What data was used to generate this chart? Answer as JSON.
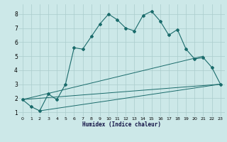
{
  "xlabel": "Humidex (Indice chaleur)",
  "background_color": "#cce8e8",
  "grid_color": "#aacccc",
  "line_color": "#1a6b6b",
  "xlim": [
    -0.5,
    23.5
  ],
  "ylim": [
    0.7,
    8.7
  ],
  "yticks": [
    1,
    2,
    3,
    4,
    5,
    6,
    7,
    8
  ],
  "xticks": [
    0,
    1,
    2,
    3,
    4,
    5,
    6,
    7,
    8,
    9,
    10,
    11,
    12,
    13,
    14,
    15,
    16,
    17,
    18,
    19,
    20,
    21,
    22,
    23
  ],
  "series1_x": [
    0,
    1,
    2,
    3,
    4,
    5,
    6,
    7,
    8,
    9,
    10,
    11,
    12,
    13,
    14,
    15,
    16,
    17,
    18,
    19,
    20,
    21,
    22,
    23
  ],
  "series1_y": [
    1.9,
    1.4,
    1.1,
    2.3,
    1.9,
    3.0,
    5.6,
    5.5,
    6.4,
    7.3,
    8.0,
    7.6,
    7.0,
    6.8,
    7.9,
    8.2,
    7.5,
    6.5,
    6.9,
    5.5,
    4.8,
    4.9,
    4.2,
    3.0
  ],
  "series2_x": [
    0,
    23
  ],
  "series2_y": [
    1.9,
    3.0
  ],
  "series3_x": [
    0,
    21
  ],
  "series3_y": [
    1.9,
    5.0
  ],
  "series4_x": [
    2,
    23
  ],
  "series4_y": [
    1.1,
    3.0
  ]
}
